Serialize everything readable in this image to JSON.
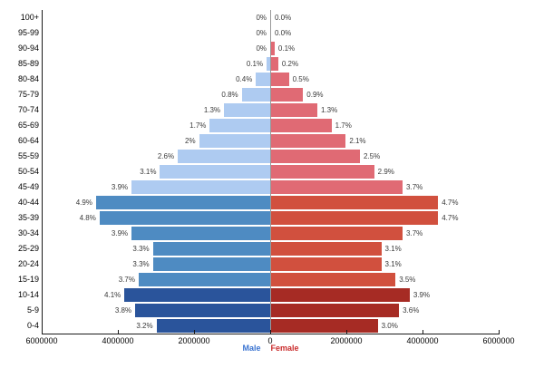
{
  "chart_data": {
    "type": "bar",
    "subtype": "population_pyramid",
    "title": "",
    "categories": [
      "100+",
      "95-99",
      "90-94",
      "85-89",
      "80-84",
      "75-79",
      "70-74",
      "65-69",
      "60-64",
      "55-59",
      "50-54",
      "45-49",
      "40-44",
      "35-39",
      "30-34",
      "25-29",
      "20-24",
      "15-19",
      "10-14",
      "5-9",
      "0-4"
    ],
    "series": [
      {
        "name": "Male",
        "side": "left",
        "unit": "percent",
        "values": [
          0,
          0,
          0,
          0.1,
          0.4,
          0.8,
          1.3,
          1.7,
          2,
          2.6,
          3.1,
          3.9,
          4.9,
          4.8,
          3.9,
          3.3,
          3.3,
          3.7,
          4.1,
          3.8,
          3.2
        ],
        "labels": [
          "0%",
          "0%",
          "0%",
          "0.1%",
          "0.4%",
          "0.8%",
          "1.3%",
          "1.7%",
          "2%",
          "2.6%",
          "3.1%",
          "3.9%",
          "4.9%",
          "4.8%",
          "3.9%",
          "3.3%",
          "3.3%",
          "3.7%",
          "4.1%",
          "3.8%",
          "3.2%"
        ]
      },
      {
        "name": "Female",
        "side": "right",
        "unit": "percent",
        "values": [
          0,
          0,
          0.1,
          0.2,
          0.5,
          0.9,
          1.3,
          1.7,
          2.1,
          2.5,
          2.9,
          3.7,
          4.7,
          4.7,
          3.7,
          3.1,
          3.1,
          3.5,
          3.9,
          3.6,
          3.0
        ],
        "labels": [
          "0.0%",
          "0.0%",
          "0.1%",
          "0.2%",
          "0.5%",
          "0.9%",
          "1.3%",
          "1.7%",
          "2.1%",
          "2.5%",
          "2.9%",
          "3.7%",
          "4.7%",
          "4.7%",
          "3.7%",
          "3.1%",
          "3.1%",
          "3.5%",
          "3.9%",
          "3.6%",
          "3.0%"
        ]
      }
    ],
    "x_axis": {
      "ticks": [
        "6000000",
        "4000000",
        "2000000",
        "0",
        "2000000",
        "4000000",
        "6000000"
      ],
      "max_each_side": 6000000,
      "grid": false
    },
    "legend": [
      {
        "label": "Male",
        "color": "#3B74D1"
      },
      {
        "label": "Female",
        "color": "#CA2C2C"
      }
    ],
    "legend_position": "bottom-center",
    "colors": {
      "male": {
        "old": "#AECBF1",
        "adult": "#4E8BC2",
        "young": "#2A549B"
      },
      "female": {
        "old": "#E06A74",
        "adult": "#D1503E",
        "young": "#A62B24"
      }
    },
    "color_groups": [
      {
        "key": "old",
        "from_index": 0,
        "to_index": 11
      },
      {
        "key": "adult",
        "from_index": 12,
        "to_index": 17
      },
      {
        "key": "young",
        "from_index": 18,
        "to_index": 20
      }
    ]
  }
}
